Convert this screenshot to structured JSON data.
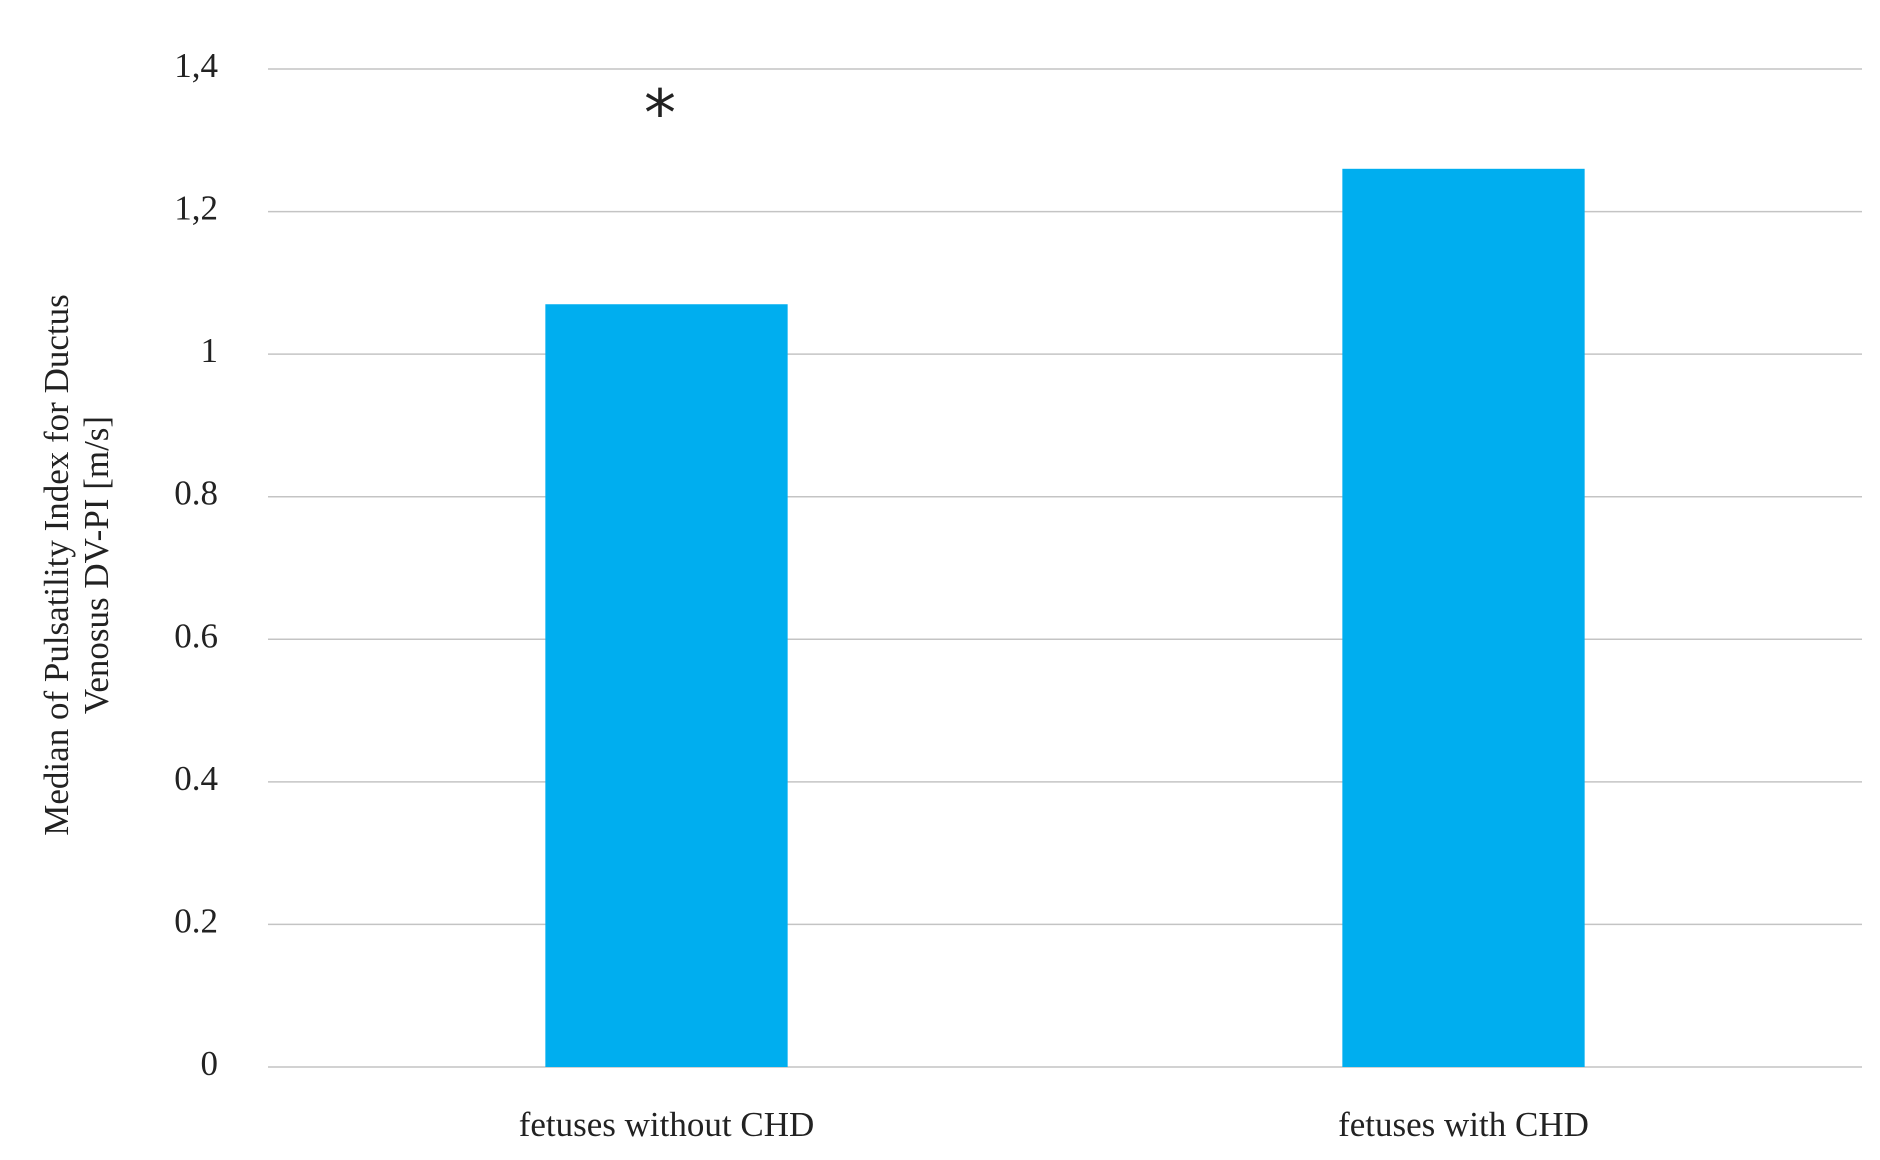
{
  "chart_data": {
    "type": "bar",
    "ylabel": [
      "Median of Pulsatility Index for Ductus",
      "Venosus DV-PI [m/s]"
    ],
    "annotation": "*",
    "categories": [
      "fetuses without CHD",
      "fetuses with CHD"
    ],
    "values": [
      1.07,
      1.26
    ],
    "color": "#00aeef",
    "ylim": [
      0,
      1.4
    ],
    "yticks": [
      0,
      0.2,
      0.4,
      0.6,
      0.8,
      1,
      {
        "value": 1.2,
        "label": "1,2"
      },
      {
        "value": 1.4,
        "label": "1,4"
      }
    ],
    "grid": true
  }
}
